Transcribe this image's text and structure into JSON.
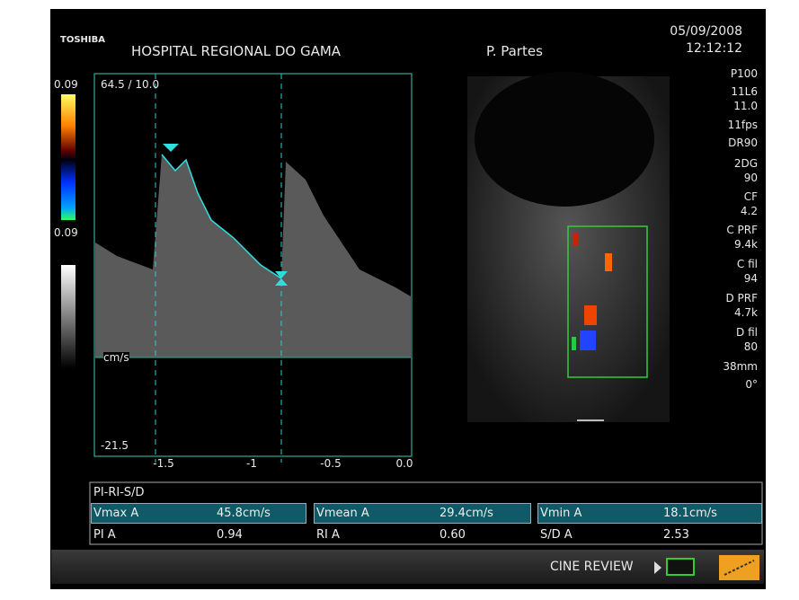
{
  "header": {
    "brand": "TOSHIBA",
    "hospital": "HOSPITAL REGIONAL DO GAMA",
    "patient": "P. Partes",
    "date": "05/09/2008",
    "time": "12:12:12"
  },
  "color_bar": {
    "top": "0.09",
    "bottom": "0.09"
  },
  "spectrum": {
    "scale": "64.5 / 10.0",
    "unit": "cm/s",
    "min": "-21.5",
    "x_ticks": [
      "-1.5",
      "-1",
      "-0.5",
      "0.0"
    ]
  },
  "parameters": [
    "P100",
    "11L6",
    "11.0",
    "11fps",
    "DR90",
    "2DG",
    "90",
    "CF",
    "4.2",
    "C PRF",
    "9.4k",
    "C fil",
    "94",
    "D PRF",
    "4.7k",
    "D fil",
    "80",
    "38mm",
    "0°"
  ],
  "measurements": {
    "title": "PI-RI-S/D",
    "rows": [
      [
        "Vmax A",
        "45.8cm/s",
        "Vmean A",
        "29.4cm/s",
        "Vmin A",
        "18.1cm/s"
      ],
      [
        "PI A",
        "0.94",
        "RI A",
        "0.60",
        "S/D A",
        "2.53"
      ]
    ]
  },
  "footer": {
    "mode": "CINE REVIEW"
  }
}
